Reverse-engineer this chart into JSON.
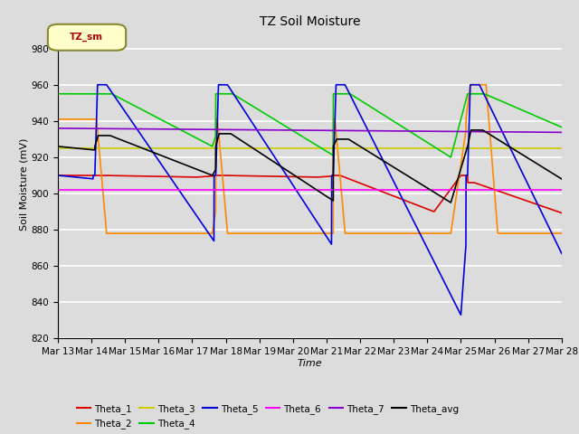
{
  "title": "TZ Soil Moisture",
  "xlabel": "Time",
  "ylabel": "Soil Moisture (mV)",
  "ylim": [
    820,
    990
  ],
  "yticks": [
    820,
    840,
    860,
    880,
    900,
    920,
    940,
    960,
    980
  ],
  "bg_color": "#dcdcdc",
  "legend_label": "TZ_sm",
  "colors": {
    "Theta_1": "#dd0000",
    "Theta_2": "#ff8800",
    "Theta_3": "#cccc00",
    "Theta_4": "#00cc00",
    "Theta_5": "#0000dd",
    "Theta_6": "#ff00ff",
    "Theta_7": "#8800cc",
    "Theta_avg": "#000000"
  },
  "xtick_labels": [
    "Mar 13",
    "Mar 14",
    "Mar 15",
    "Mar 16",
    "Mar 17",
    "Mar 18",
    "Mar 19",
    "Mar 20",
    "Mar 21",
    "Mar 22",
    "Mar 23",
    "Mar 24",
    "Mar 25",
    "Mar 26",
    "Mar 27",
    "Mar 28"
  ],
  "irr_times": [
    1.1,
    4.7,
    8.2,
    12.2
  ],
  "n_points": 3000
}
